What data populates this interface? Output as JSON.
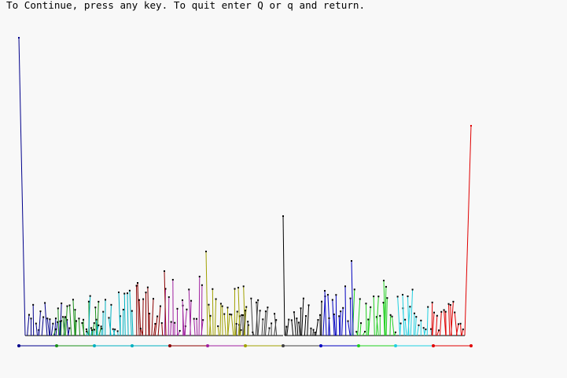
{
  "window": {
    "prompt_text": "To Continue, press any key. To quit enter Q or q and return."
  },
  "plot": {
    "palette": [
      "#00008b",
      "#1a8f1a",
      "#00b0c0",
      "#8b0000",
      "#a020a0",
      "#a0a000",
      "#404040",
      "#000000",
      "#0000c0",
      "#20d020",
      "#20d0e0",
      "#e00000"
    ]
  }
}
